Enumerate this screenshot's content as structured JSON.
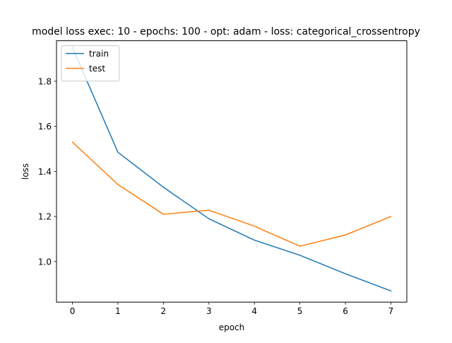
{
  "chart_data": {
    "type": "line",
    "title": "model loss exec: 10 - epochs: 100 - opt: adam - loss: categorical_crossentropy",
    "xlabel": "epoch",
    "ylabel": "loss",
    "x": [
      0,
      1,
      2,
      3,
      4,
      5,
      6,
      7
    ],
    "xticks": [
      0,
      1,
      2,
      3,
      4,
      5,
      6,
      7
    ],
    "yticks": [
      1.0,
      1.2,
      1.4,
      1.6,
      1.8
    ],
    "xlim": [
      -0.35,
      7.35
    ],
    "ylim": [
      0.82,
      1.98
    ],
    "grid": false,
    "legend_position": "upper left",
    "series": [
      {
        "name": "train",
        "color": "#1f77b4",
        "values": [
          1.95,
          1.485,
          1.33,
          1.19,
          1.095,
          1.028,
          0.946,
          0.87
        ]
      },
      {
        "name": "test",
        "color": "#ff7f0e",
        "values": [
          1.53,
          1.342,
          1.21,
          1.228,
          1.157,
          1.068,
          1.118,
          1.2
        ]
      }
    ]
  }
}
